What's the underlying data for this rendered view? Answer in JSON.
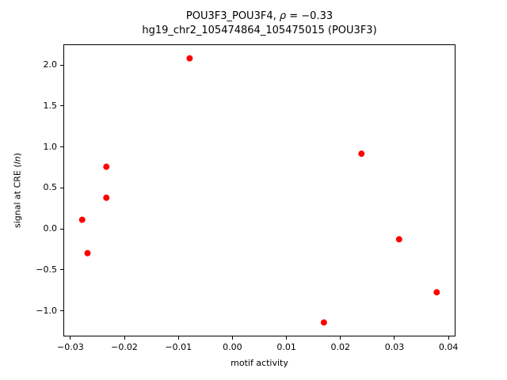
{
  "figure": {
    "title_line1_prefix": "POU3F3_POU3F4, ",
    "title_rho": "ρ",
    "title_line1_suffix": " = −0.33",
    "title_line2": "hg19_chr2_105474864_105475015 (POU3F3)",
    "xlabel": "motif activity",
    "ylabel_prefix": "signal at CRE (",
    "ylabel_italic": "ln",
    "ylabel_suffix": ")"
  },
  "chart_data": {
    "type": "scatter",
    "title": "POU3F3_POU3F4, ρ = −0.33\nhg19_chr2_105474864_105475015 (POU3F3)",
    "xlabel": "motif activity",
    "ylabel": "signal at CRE (ln)",
    "marker_color": "#ff0000",
    "marker_radius_px": 4,
    "grid": false,
    "legend": null,
    "xlim": [
      -0.0313,
      0.0413
    ],
    "ylim": [
      -1.312,
      2.252
    ],
    "xticks": [
      -0.03,
      -0.02,
      -0.01,
      0.0,
      0.01,
      0.02,
      0.03,
      0.04
    ],
    "xtick_labels": [
      "−0.03",
      "−0.02",
      "−0.01",
      "0.00",
      "0.01",
      "0.02",
      "0.03",
      "0.04"
    ],
    "yticks": [
      -1.0,
      -0.5,
      0.0,
      0.5,
      1.0,
      1.5,
      2.0
    ],
    "ytick_labels": [
      "−1.0",
      "−0.5",
      "0.0",
      "0.5",
      "1.0",
      "1.5",
      "2.0"
    ],
    "points": [
      {
        "x": -0.028,
        "y": 0.11
      },
      {
        "x": -0.027,
        "y": -0.3
      },
      {
        "x": -0.0235,
        "y": 0.76
      },
      {
        "x": -0.0235,
        "y": 0.38
      },
      {
        "x": -0.008,
        "y": 2.09
      },
      {
        "x": 0.017,
        "y": -1.15
      },
      {
        "x": 0.024,
        "y": 0.92
      },
      {
        "x": 0.031,
        "y": -0.13
      },
      {
        "x": 0.038,
        "y": -0.78
      }
    ]
  }
}
